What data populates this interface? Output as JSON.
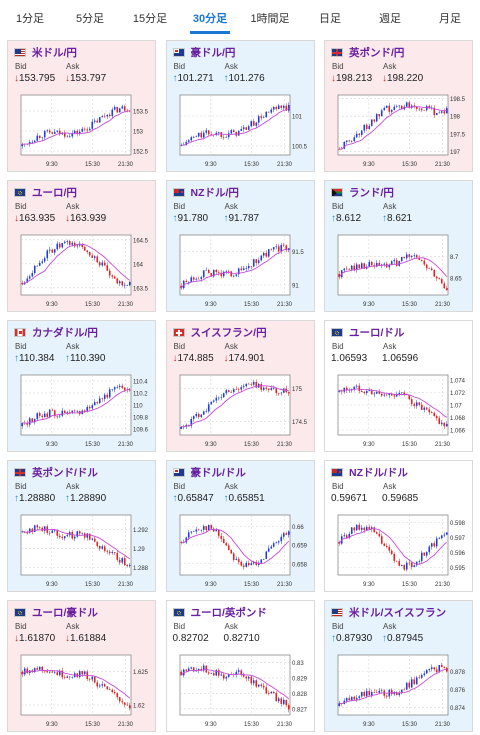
{
  "tabs": [
    "1分足",
    "5分足",
    "15分足",
    "30分足",
    "1時間足",
    "日足",
    "週足",
    "月足"
  ],
  "active_tab": 3,
  "labels": {
    "bid": "Bid",
    "ask": "Ask"
  },
  "x_ticks": [
    "9:30",
    "15:30",
    "21:30"
  ],
  "colors": {
    "down_bg": "#fbe9ec",
    "up_bg": "#e6f3fc",
    "pair_text": "#6a1ea0",
    "bull_candle": "#1f3fd8",
    "bear_candle": "#e02424",
    "ma_line": "#c64bd6",
    "up_arrow": "#1d8fd8",
    "down_arrow": "#d32f2f"
  },
  "cards": [
    {
      "pair": "米ドル/円",
      "flag": "us",
      "state": "down",
      "bid": "153.795",
      "ask": "153.797",
      "bid_dir": "down",
      "ask_dir": "down",
      "y_ticks": [
        "153.5",
        "153",
        "152.5"
      ],
      "ylim": [
        152.4,
        153.9
      ],
      "trend": "up-late"
    },
    {
      "pair": "豪ドル/円",
      "flag": "au",
      "state": "up",
      "bid": "101.271",
      "ask": "101.276",
      "bid_dir": "up",
      "ask_dir": "up",
      "y_ticks": [
        "101",
        "100.5"
      ],
      "ylim": [
        100.35,
        101.35
      ],
      "trend": "up-late"
    },
    {
      "pair": "英ポンド/円",
      "flag": "gb",
      "state": "down",
      "bid": "198.213",
      "ask": "198.220",
      "bid_dir": "down",
      "ask_dir": "down",
      "y_ticks": [
        "198.5",
        "198",
        "197.5",
        "197"
      ],
      "ylim": [
        196.9,
        198.6
      ],
      "trend": "up-plateau"
    },
    {
      "pair": "ユーロ/円",
      "flag": "eu",
      "state": "down",
      "bid": "163.935",
      "ask": "163.939",
      "bid_dir": "down",
      "ask_dir": "down",
      "y_ticks": [
        "164.5",
        "164",
        "163.5"
      ],
      "ylim": [
        163.35,
        164.6
      ],
      "trend": "hump"
    },
    {
      "pair": "NZドル/円",
      "flag": "nz",
      "state": "up",
      "bid": "91.780",
      "ask": "91.787",
      "bid_dir": "up",
      "ask_dir": "up",
      "y_ticks": [
        "91.5",
        "91"
      ],
      "ylim": [
        90.85,
        91.75
      ],
      "trend": "up-late"
    },
    {
      "pair": "ランド/円",
      "flag": "za",
      "state": "up",
      "bid": "8.612",
      "ask": "8.621",
      "bid_dir": "up",
      "ask_dir": "up",
      "y_ticks": [
        "8.7",
        "8.65"
      ],
      "ylim": [
        8.61,
        8.75
      ],
      "trend": "hump-late-drop"
    },
    {
      "pair": "カナダドル/円",
      "flag": "ca",
      "state": "up",
      "bid": "110.384",
      "ask": "110.390",
      "bid_dir": "up",
      "ask_dir": "up",
      "y_ticks": [
        "110.4",
        "110.2",
        "110",
        "109.8",
        "109.6"
      ],
      "ylim": [
        109.5,
        110.5
      ],
      "trend": "up-late"
    },
    {
      "pair": "スイスフラン/円",
      "flag": "ch",
      "state": "down",
      "bid": "174.885",
      "ask": "174.901",
      "bid_dir": "down",
      "ask_dir": "down",
      "y_ticks": [
        "175",
        "174.5"
      ],
      "ylim": [
        174.3,
        175.2
      ],
      "trend": "up-plateau"
    },
    {
      "pair": "ユーロ/ドル",
      "flag": "eu",
      "state": "flat",
      "bid": "1.06593",
      "ask": "1.06596",
      "bid_dir": "",
      "ask_dir": "",
      "y_ticks": [
        "1.074",
        "1.072",
        "1.07",
        "1.068",
        "1.066"
      ],
      "ylim": [
        1.0652,
        1.0748
      ],
      "trend": "down-late"
    },
    {
      "pair": "英ポンド/ドル",
      "flag": "gb",
      "state": "up",
      "bid": "1.28880",
      "ask": "1.28890",
      "bid_dir": "up",
      "ask_dir": "up",
      "y_ticks": [
        "1.292",
        "1.29",
        "1.288"
      ],
      "ylim": [
        1.2872,
        1.2935
      ],
      "trend": "down-late"
    },
    {
      "pair": "豪ドル/ドル",
      "flag": "au",
      "state": "up",
      "bid": "0.65847",
      "ask": "0.65851",
      "bid_dir": "up",
      "ask_dir": "up",
      "y_ticks": [
        "0.66",
        "0.659",
        "0.658"
      ],
      "ylim": [
        0.6574,
        0.6606
      ],
      "trend": "dip-mid"
    },
    {
      "pair": "NZドル/ドル",
      "flag": "nz",
      "state": "flat",
      "bid": "0.59671",
      "ask": "0.59685",
      "bid_dir": "",
      "ask_dir": "",
      "y_ticks": [
        "0.598",
        "0.597",
        "0.596",
        "0.595"
      ],
      "ylim": [
        0.5945,
        0.5985
      ],
      "trend": "dip-mid"
    },
    {
      "pair": "ユーロ/豪ドル",
      "flag": "eu",
      "state": "down",
      "bid": "1.61870",
      "ask": "1.61884",
      "bid_dir": "down",
      "ask_dir": "down",
      "y_ticks": [
        "1.625",
        "1.62"
      ],
      "ylim": [
        1.6185,
        1.6275
      ],
      "trend": "down-late"
    },
    {
      "pair": "ユーロ/英ポンド",
      "flag": "eu",
      "state": "flat",
      "bid": "0.82702",
      "ask": "0.82710",
      "bid_dir": "",
      "ask_dir": "",
      "y_ticks": [
        "0.83",
        "0.829",
        "0.828",
        "0.827"
      ],
      "ylim": [
        0.8266,
        0.8305
      ],
      "trend": "down-late"
    },
    {
      "pair": "米ドル/スイスフラン",
      "flag": "us-ch",
      "state": "up",
      "bid": "0.87930",
      "ask": "0.87945",
      "bid_dir": "up",
      "ask_dir": "up",
      "y_ticks": [
        "0.878",
        "0.876",
        "0.874"
      ],
      "ylim": [
        0.8732,
        0.8798
      ],
      "trend": "up-late"
    }
  ]
}
